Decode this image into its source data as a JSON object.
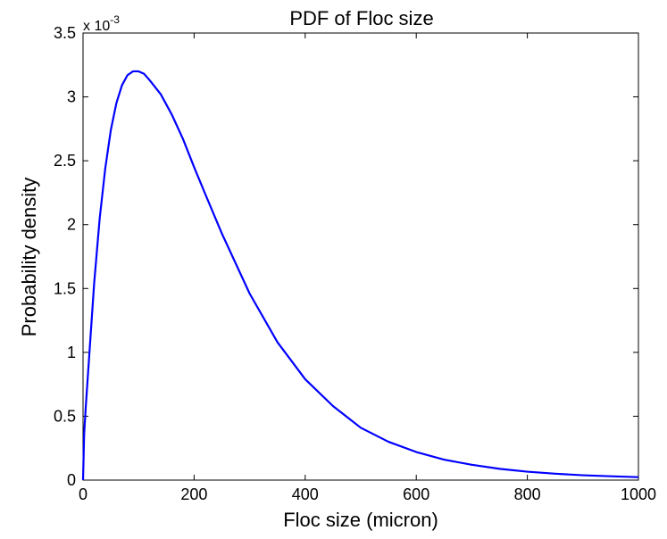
{
  "chart_data": {
    "type": "line",
    "title": "PDF of Floc size",
    "xlabel": "Floc size (micron)",
    "ylabel": "Probability density",
    "xlim": [
      0,
      1000
    ],
    "ylim": [
      0,
      0.0035
    ],
    "x_ticks": [
      0,
      200,
      400,
      600,
      800,
      1000
    ],
    "y_ticks": [
      0,
      0.5,
      1,
      1.5,
      2,
      2.5,
      3,
      3.5
    ],
    "y_tick_labels": [
      "0",
      "0.5",
      "1",
      "1.5",
      "2",
      "2.5",
      "3",
      "3.5"
    ],
    "y_multiplier_base": "x 10",
    "y_multiplier_exp": "-3",
    "grid": false,
    "series": [
      {
        "color": "#0000ff",
        "x": [
          0,
          2,
          5,
          10,
          20,
          30,
          40,
          50,
          60,
          70,
          80,
          90,
          100,
          110,
          120,
          140,
          160,
          180,
          200,
          220,
          250,
          300,
          350,
          400,
          450,
          500,
          550,
          600,
          650,
          700,
          750,
          800,
          850,
          900,
          950,
          1000
        ],
        "y": [
          0,
          0.00036,
          0.00058,
          0.0009,
          0.00154,
          0.00205,
          0.00244,
          0.00274,
          0.00295,
          0.00309,
          0.00317,
          0.0032,
          0.0032,
          0.00318,
          0.00313,
          0.00302,
          0.00286,
          0.00267,
          0.00245,
          0.00224,
          0.00193,
          0.00146,
          0.00108,
          0.00079,
          0.00058,
          0.00041,
          0.0003,
          0.00022,
          0.00016,
          0.00012,
          8.8e-05,
          6.6e-05,
          5e-05,
          3.8e-05,
          3e-05,
          2.3e-05
        ]
      }
    ]
  }
}
